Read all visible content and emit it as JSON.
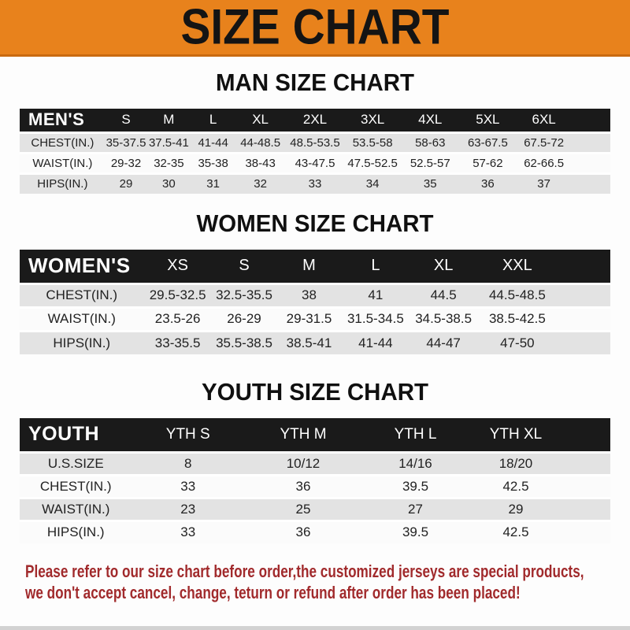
{
  "banner": {
    "title": "SIZE CHART"
  },
  "sections": [
    {
      "heading": "MAN SIZE CHART",
      "table": {
        "header": [
          "MEN'S",
          "S",
          "M",
          "L",
          "XL",
          "2XL",
          "3XL",
          "4XL",
          "5XL",
          "6XL"
        ],
        "rows": [
          [
            "CHEST(IN.)",
            "35-37.5",
            "37.5-41",
            "41-44",
            "44-48.5",
            "48.5-53.5",
            "53.5-58",
            "58-63",
            "63-67.5",
            "67.5-72"
          ],
          [
            "WAIST(IN.)",
            "29-32",
            "32-35",
            "35-38",
            "38-43",
            "43-47.5",
            "47.5-52.5",
            "52.5-57",
            "57-62",
            "62-66.5"
          ],
          [
            "HIPS(IN.)",
            "29",
            "30",
            "31",
            "32",
            "33",
            "34",
            "35",
            "36",
            "37"
          ]
        ]
      }
    },
    {
      "heading": "WOMEN SIZE CHART",
      "table": {
        "header": [
          "WOMEN'S",
          "XS",
          "S",
          "M",
          "L",
          "XL",
          "XXL"
        ],
        "rows": [
          [
            "CHEST(IN.)",
            "29.5-32.5",
            "32.5-35.5",
            "38",
            "41",
            "44.5",
            "44.5-48.5"
          ],
          [
            "WAIST(IN.)",
            "23.5-26",
            "26-29",
            "29-31.5",
            "31.5-34.5",
            "34.5-38.5",
            "38.5-42.5"
          ],
          [
            "HIPS(IN.)",
            "33-35.5",
            "35.5-38.5",
            "38.5-41",
            "41-44",
            "44-47",
            "47-50"
          ]
        ]
      }
    },
    {
      "heading": "YOUTH SIZE CHART",
      "table": {
        "header": [
          "YOUTH",
          "YTH S",
          "YTH M",
          "YTH L",
          "YTH XL"
        ],
        "rows": [
          [
            "U.S.SIZE",
            "8",
            "10/12",
            "14/16",
            "18/20"
          ],
          [
            "CHEST(IN.)",
            "33",
            "36",
            "39.5",
            "42.5"
          ],
          [
            "WAIST(IN.)",
            "23",
            "25",
            "27",
            "29"
          ],
          [
            "HIPS(IN.)",
            "33",
            "36",
            "39.5",
            "42.5"
          ]
        ]
      }
    }
  ],
  "footer": {
    "line1": "Please refer to our size chart before order,the customized jerseys are special products,",
    "line2": "we don't accept cancel, change, teturn or refund after order has been placed!"
  },
  "colors": {
    "banner_bg": "#E8821C",
    "banner_border": "#C96A10",
    "header_bar_bg": "#1A1A1A",
    "row_gray": "#E3E3E3",
    "row_white": "#FBFBFB",
    "note_red": "#A12A2C"
  }
}
